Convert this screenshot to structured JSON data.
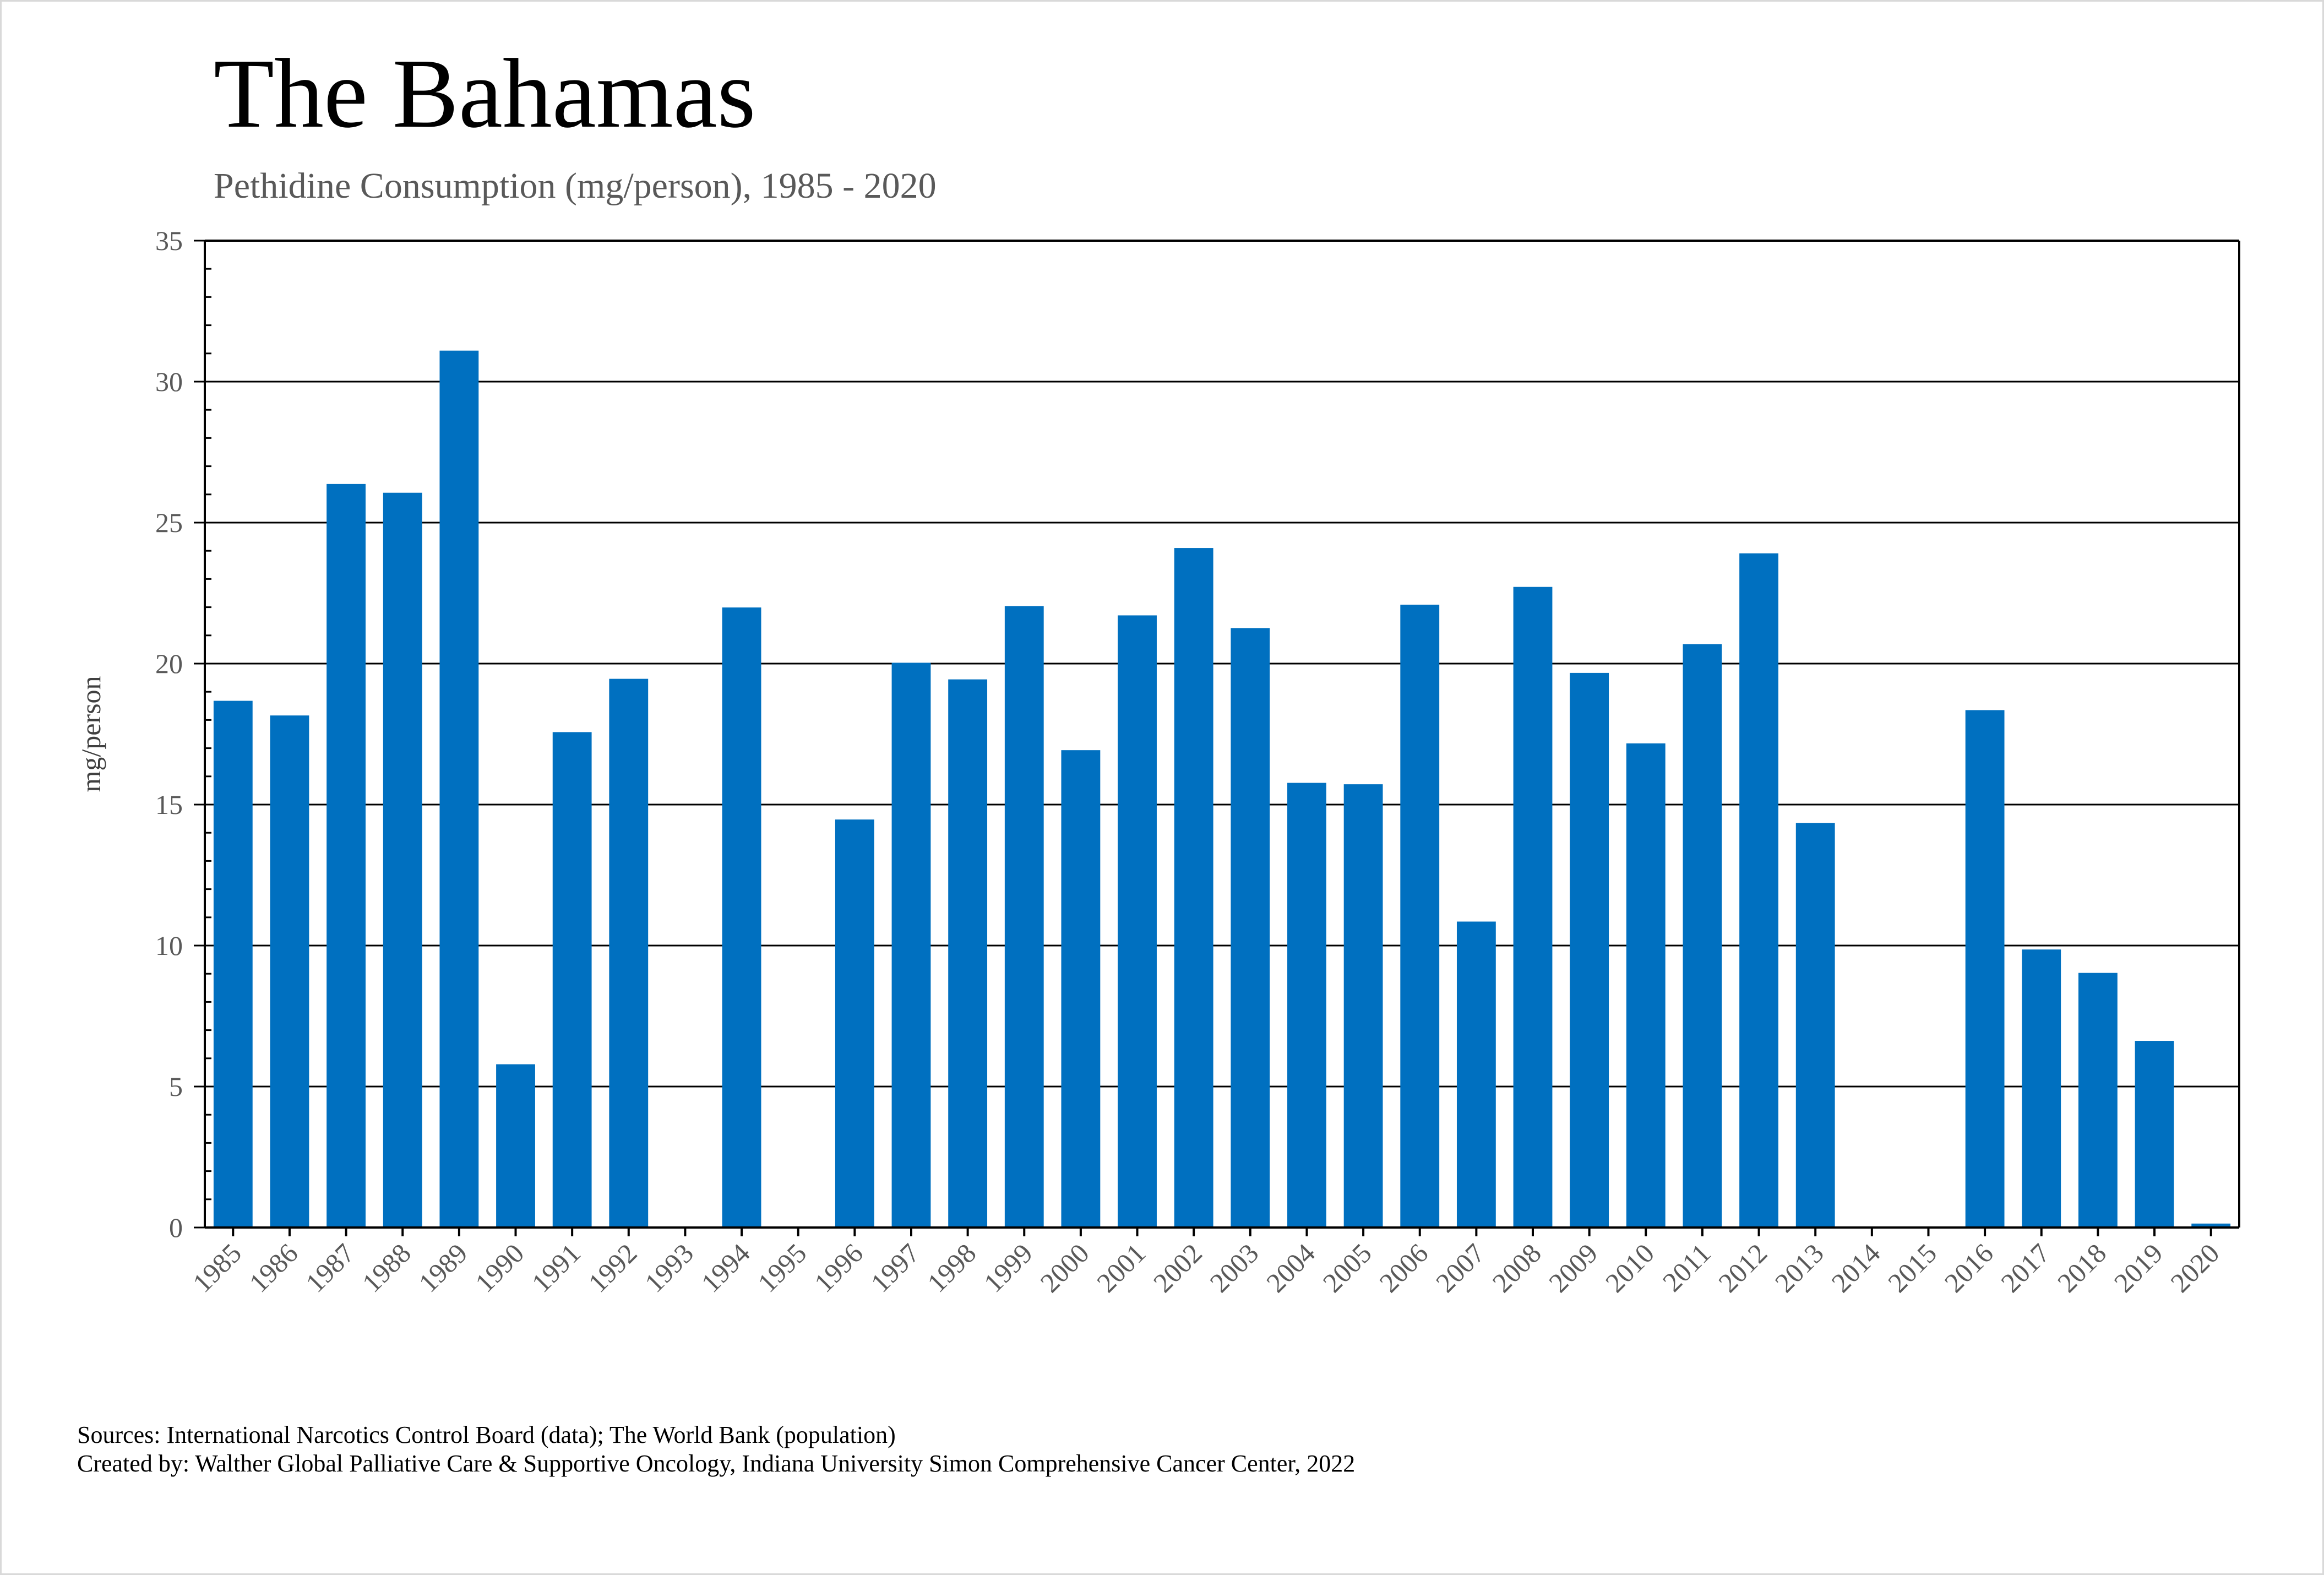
{
  "chart_data": {
    "type": "bar",
    "title": "The Bahamas",
    "subtitle": "Pethidine Consumption (mg/person), 1985 - 2020",
    "xlabel": "",
    "ylabel": "mg/person",
    "ylim": [
      0,
      35
    ],
    "yticks": [
      0,
      5,
      10,
      15,
      20,
      25,
      30,
      35
    ],
    "grid": true,
    "bar_color": "#0070c0",
    "categories": [
      "1985",
      "1986",
      "1987",
      "1988",
      "1989",
      "1990",
      "1991",
      "1992",
      "1993",
      "1994",
      "1995",
      "1996",
      "1997",
      "1998",
      "1999",
      "2000",
      "2001",
      "2002",
      "2003",
      "2004",
      "2005",
      "2006",
      "2007",
      "2008",
      "2009",
      "2010",
      "2011",
      "2012",
      "2013",
      "2014",
      "2015",
      "2016",
      "2017",
      "2018",
      "2019",
      "2020"
    ],
    "values": [
      18.68,
      18.16,
      26.37,
      26.06,
      31.1,
      5.79,
      17.57,
      19.46,
      0,
      21.99,
      0,
      14.47,
      20.03,
      19.44,
      22.04,
      16.93,
      21.71,
      24.1,
      21.26,
      15.77,
      15.72,
      22.09,
      10.85,
      22.72,
      19.67,
      17.17,
      20.69,
      23.91,
      14.35,
      0,
      0,
      18.35,
      9.86,
      9.03,
      6.62,
      0.14
    ]
  },
  "footer": {
    "sources": "Sources: International Narcotics Control Board (data); The World Bank (population)",
    "created_by": "Created by: Walther Global Palliative Care & Supportive Oncology, Indiana University Simon Comprehensive Cancer Center, 2022"
  }
}
